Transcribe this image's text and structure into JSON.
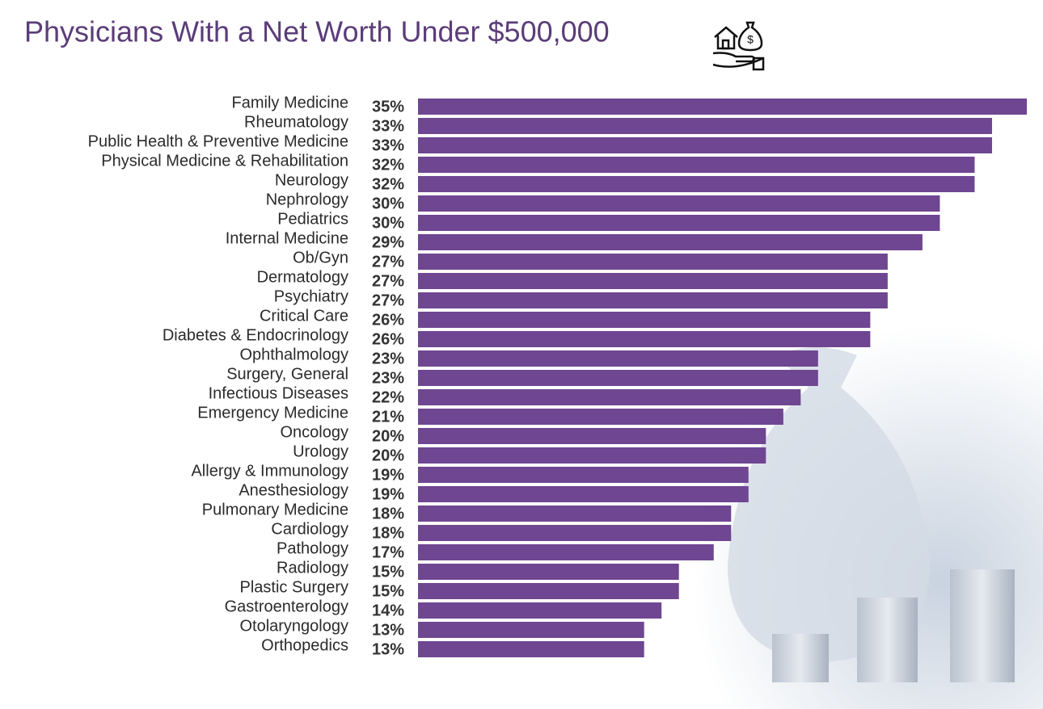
{
  "chart_data": {
    "type": "bar",
    "orientation": "horizontal",
    "title": "Physicians With a Net Worth Under $500,000",
    "categories": [
      "Family Medicine",
      "Rheumatology",
      "Public Health & Preventive Medicine",
      "Physical Medicine & Rehabilitation",
      "Neurology",
      "Nephrology",
      "Pediatrics",
      "Internal Medicine",
      "Ob/Gyn",
      "Dermatology",
      "Psychiatry",
      "Critical Care",
      "Diabetes & Endocrinology",
      "Ophthalmology",
      "Surgery, General",
      "Infectious Diseases",
      "Emergency Medicine",
      "Oncology",
      "Urology",
      "Allergy & Immunology",
      "Anesthesiology",
      "Pulmonary Medicine",
      "Cardiology",
      "Pathology",
      "Radiology",
      "Plastic Surgery",
      "Gastroenterology",
      "Otolaryngology",
      "Orthopedics"
    ],
    "values": [
      35,
      33,
      33,
      32,
      32,
      30,
      30,
      29,
      27,
      27,
      27,
      26,
      26,
      23,
      23,
      22,
      21,
      20,
      20,
      19,
      19,
      18,
      18,
      17,
      15,
      15,
      14,
      13,
      13
    ],
    "value_labels": [
      "35%",
      "33%",
      "33%",
      "32%",
      "32%",
      "30%",
      "30%",
      "29%",
      "27%",
      "27%",
      "27%",
      "26%",
      "26%",
      "23%",
      "23%",
      "22%",
      "21%",
      "20%",
      "20%",
      "19%",
      "19%",
      "18%",
      "18%",
      "17%",
      "15%",
      "15%",
      "14%",
      "13%",
      "13%"
    ],
    "color": "#6f4691"
  }
}
